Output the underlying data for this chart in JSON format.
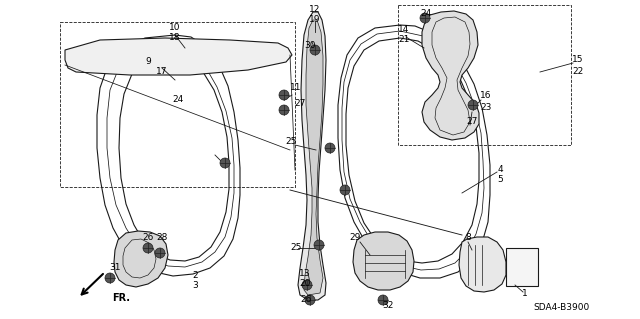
{
  "background_color": "#ffffff",
  "line_color": "#1a1a1a",
  "figure_width": 6.4,
  "figure_height": 3.19,
  "diagram_code": "SDA4-B3900"
}
